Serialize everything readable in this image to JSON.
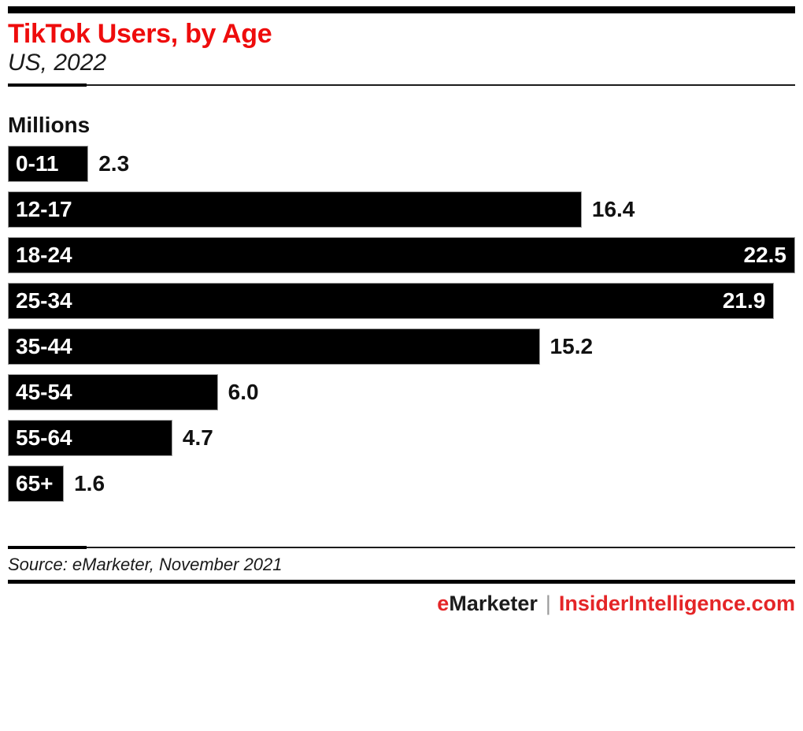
{
  "page": {
    "background": "#ffffff"
  },
  "header": {
    "title": "TikTok Users, by Age",
    "subtitle": "US, 2022",
    "title_color": "#ee0c0c"
  },
  "chart_data": {
    "type": "bar",
    "orientation": "horizontal",
    "title": "TikTok Users, by Age",
    "subtitle": "US, 2022",
    "unit_label": "Millions",
    "categories": [
      "0-11",
      "12-17",
      "18-24",
      "25-34",
      "35-44",
      "45-54",
      "55-64",
      "65+"
    ],
    "values": [
      2.3,
      16.4,
      22.5,
      21.9,
      15.2,
      6.0,
      4.7,
      1.6
    ],
    "value_labels": [
      "2.3",
      "16.4",
      "22.5",
      "21.9",
      "15.2",
      "6.0",
      "4.7",
      "1.6"
    ],
    "xlim": [
      0,
      22.5
    ],
    "bar_color": "#000000",
    "grid": false,
    "legend": false,
    "inside_label_min_ratio": 0.9
  },
  "footer": {
    "source": "Source: eMarketer, November 2021",
    "brand_left_accent": "e",
    "brand_left_rest": "Marketer",
    "brand_divider": "|",
    "brand_right": "InsiderIntelligence.com",
    "brand_red": "#e42527"
  }
}
